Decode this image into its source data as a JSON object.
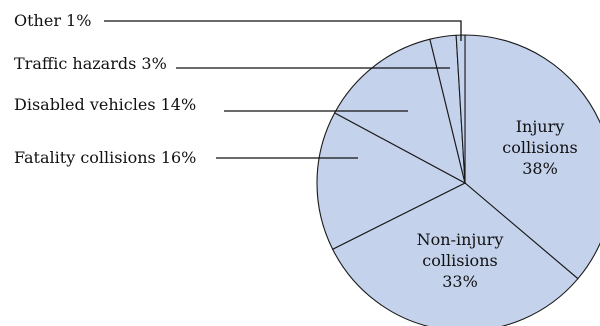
{
  "chart_data": {
    "type": "pie",
    "title": "",
    "start_angle_deg": 0,
    "direction": "clockwise",
    "slice_color": "#c4d2ec",
    "stroke_color": "#1a1a1a",
    "legend": "none",
    "slices": [
      {
        "name": "Injury collisions",
        "value": 38,
        "label": "38%",
        "label_lines": [
          "Injury",
          "collisions",
          "38%"
        ],
        "label_style": "inside"
      },
      {
        "name": "Non-injury collisions",
        "value": 33,
        "label": "33%",
        "label_lines": [
          "Non-injury",
          "collisions",
          "33%"
        ],
        "label_style": "inside"
      },
      {
        "name": "Fatality collisions",
        "value": 16,
        "label": "16%",
        "label_lines": [
          "Fatality collisions 16%"
        ],
        "label_style": "callout"
      },
      {
        "name": "Disabled vehicles",
        "value": 14,
        "label": "14%",
        "label_lines": [
          "Disabled vehicles 14%"
        ],
        "label_style": "callout"
      },
      {
        "name": "Traffic hazards",
        "value": 3,
        "label": "3%",
        "label_lines": [
          "Traffic hazards 3%"
        ],
        "label_style": "callout"
      },
      {
        "name": "Other",
        "value": 1,
        "label": "1%",
        "label_lines": [
          "Other 1%"
        ],
        "label_style": "callout"
      }
    ]
  }
}
